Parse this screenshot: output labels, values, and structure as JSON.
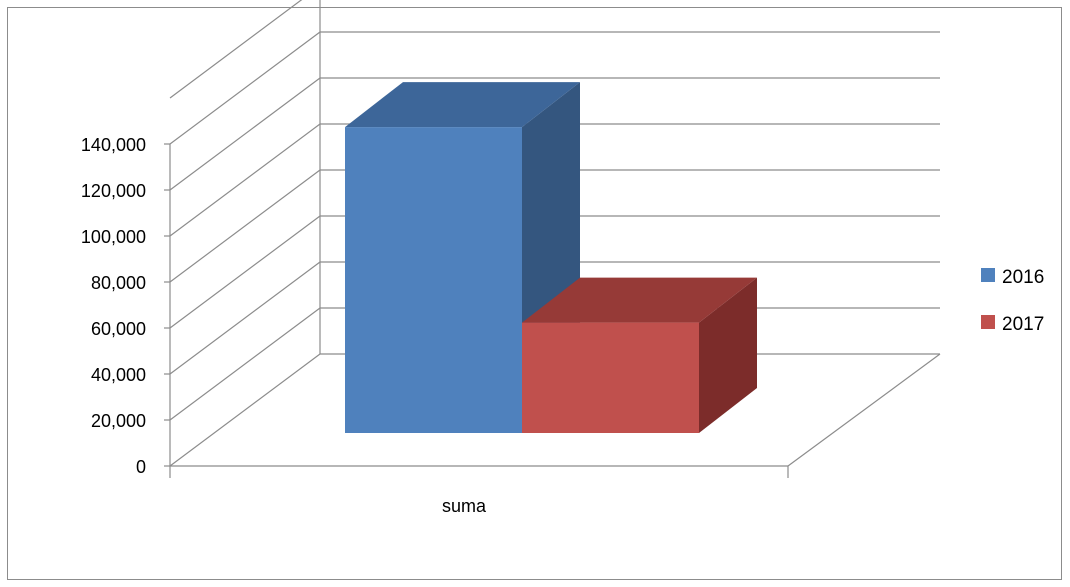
{
  "chart_data": {
    "type": "bar",
    "style": "3d-column",
    "categories": [
      "suma"
    ],
    "series": [
      {
        "name": "2016",
        "values": [
          133000
        ],
        "color": "#4F81BD",
        "side_color": "#34567F",
        "top_color": "#3D6699"
      },
      {
        "name": "2017",
        "values": [
          48000
        ],
        "color": "#C0504D",
        "side_color": "#7C2C2A",
        "top_color": "#963A37"
      }
    ],
    "ylim": [
      0,
      140000
    ],
    "yticks": [
      "0",
      "20,000",
      "40,000",
      "60,000",
      "80,000",
      "100,000",
      "120,000",
      "140,000"
    ],
    "grid": true,
    "legend": "right"
  }
}
